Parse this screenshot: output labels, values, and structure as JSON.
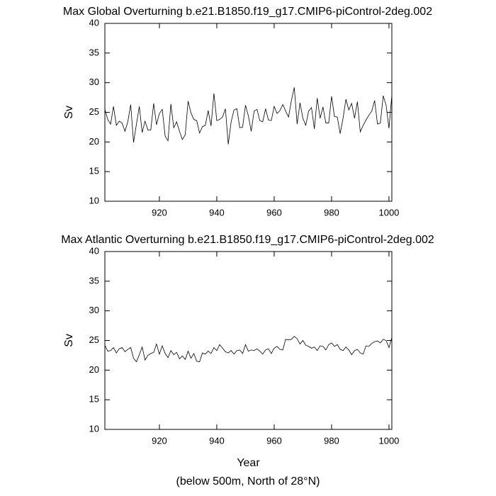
{
  "chart_data": [
    {
      "type": "line",
      "title": "Max Global Overturning b.e21.B1850.f19_g17.CMIP6-piControl-2deg.002",
      "y_label": "Sv",
      "x": [
        901,
        902,
        903,
        904,
        905,
        906,
        907,
        908,
        909,
        910,
        911,
        912,
        913,
        914,
        915,
        916,
        917,
        918,
        919,
        920,
        921,
        922,
        923,
        924,
        925,
        926,
        927,
        928,
        929,
        930,
        931,
        932,
        933,
        934,
        935,
        936,
        937,
        938,
        939,
        940,
        941,
        942,
        943,
        944,
        945,
        946,
        947,
        948,
        949,
        950,
        951,
        952,
        953,
        954,
        955,
        956,
        957,
        958,
        959,
        960,
        961,
        962,
        963,
        964,
        965,
        966,
        967,
        968,
        969,
        970,
        971,
        972,
        973,
        974,
        975,
        976,
        977,
        978,
        979,
        980,
        981,
        982,
        983,
        984,
        985,
        986,
        987,
        988,
        989,
        990,
        991,
        992,
        993,
        994,
        995,
        996,
        997,
        998,
        999,
        1000,
        1001
      ],
      "series": [
        {
          "color": "#000000",
          "values": [
            25.5,
            23.8,
            23.0,
            26.0,
            22.8,
            23.5,
            23.2,
            21.8,
            23.4,
            26.3,
            19.9,
            23.0,
            26.0,
            21.6,
            23.5,
            22.0,
            22.0,
            26.5,
            22.9,
            24.8,
            25.5,
            21.0,
            20.2,
            26.4,
            22.4,
            23.4,
            21.8,
            20.4,
            21.2,
            26.9,
            24.9,
            23.8,
            23.6,
            21.5,
            22.6,
            22.8,
            25.3,
            22.7,
            28.2,
            23.6,
            23.8,
            24.2,
            25.6,
            19.6,
            23.4,
            25.4,
            25.6,
            22.4,
            22.5,
            26.2,
            24.4,
            21.8,
            25.2,
            25.5,
            23.6,
            23.4,
            25.6,
            23.7,
            23.6,
            26.0,
            24.8,
            25.3,
            26.3,
            25.2,
            24.2,
            27.0,
            29.2,
            23.0,
            26.6,
            24.0,
            22.8,
            25.2,
            25.8,
            22.2,
            27.4,
            24.0,
            25.9,
            23.2,
            23.2,
            27.7,
            24.3,
            24.2,
            21.4,
            24.0,
            27.2,
            25.4,
            26.5,
            24.0,
            26.8,
            21.7,
            22.8,
            23.7,
            24.5,
            25.2,
            27.0,
            23.0,
            23.2,
            27.8,
            26.2,
            22.3,
            27.9
          ]
        }
      ],
      "xlim": [
        901,
        1001
      ],
      "xticks": [
        920,
        940,
        960,
        980,
        1000
      ],
      "ylim": [
        10,
        40
      ],
      "yticks": [
        10,
        15,
        20,
        25,
        30,
        35,
        40
      ]
    },
    {
      "type": "line",
      "title": "Max Atlantic Overturning b.e21.B1850.f19_g17.CMIP6-piControl-2deg.002",
      "y_label": "Sv",
      "x_label": "Year",
      "x": [
        901,
        902,
        903,
        904,
        905,
        906,
        907,
        908,
        909,
        910,
        911,
        912,
        913,
        914,
        915,
        916,
        917,
        918,
        919,
        920,
        921,
        922,
        923,
        924,
        925,
        926,
        927,
        928,
        929,
        930,
        931,
        932,
        933,
        934,
        935,
        936,
        937,
        938,
        939,
        940,
        941,
        942,
        943,
        944,
        945,
        946,
        947,
        948,
        949,
        950,
        951,
        952,
        953,
        954,
        955,
        956,
        957,
        958,
        959,
        960,
        961,
        962,
        963,
        964,
        965,
        966,
        967,
        968,
        969,
        970,
        971,
        972,
        973,
        974,
        975,
        976,
        977,
        978,
        979,
        980,
        981,
        982,
        983,
        984,
        985,
        986,
        987,
        988,
        989,
        990,
        991,
        992,
        993,
        994,
        995,
        996,
        997,
        998,
        999,
        1000,
        1001
      ],
      "series": [
        {
          "color": "#000000",
          "values": [
            24.2,
            23.2,
            23.3,
            23.8,
            22.9,
            23.6,
            23.8,
            23.1,
            23.5,
            23.8,
            22.0,
            21.4,
            22.6,
            23.9,
            21.7,
            22.5,
            22.8,
            23.0,
            24.4,
            22.7,
            24.1,
            22.8,
            22.1,
            23.3,
            22.6,
            23.0,
            21.9,
            22.4,
            21.8,
            23.2,
            22.0,
            22.8,
            21.5,
            21.4,
            22.9,
            22.7,
            23.2,
            22.8,
            23.8,
            23.3,
            24.3,
            23.7,
            23.1,
            22.9,
            23.3,
            22.7,
            23.3,
            23.4,
            22.8,
            24.3,
            23.2,
            23.4,
            23.3,
            23.6,
            23.2,
            22.7,
            23.4,
            23.6,
            22.8,
            23.7,
            24.0,
            23.5,
            23.4,
            25.2,
            25.1,
            25.2,
            25.7,
            25.3,
            24.4,
            25.0,
            24.2,
            24.0,
            23.7,
            23.9,
            23.3,
            24.1,
            24.0,
            23.4,
            24.3,
            24.6,
            24.0,
            24.3,
            23.5,
            23.3,
            23.9,
            23.4,
            22.6,
            23.3,
            23.5,
            22.9,
            22.7,
            24.1,
            24.0,
            24.5,
            24.8,
            24.9,
            24.6,
            25.2,
            25.0,
            23.8,
            25.5
          ]
        }
      ],
      "xlim": [
        901,
        1001
      ],
      "xticks": [
        920,
        940,
        960,
        980,
        1000
      ],
      "ylim": [
        10,
        40
      ],
      "yticks": [
        10,
        15,
        20,
        25,
        30,
        35,
        40
      ]
    }
  ],
  "footnote": "(below 500m, North of 28°N)"
}
